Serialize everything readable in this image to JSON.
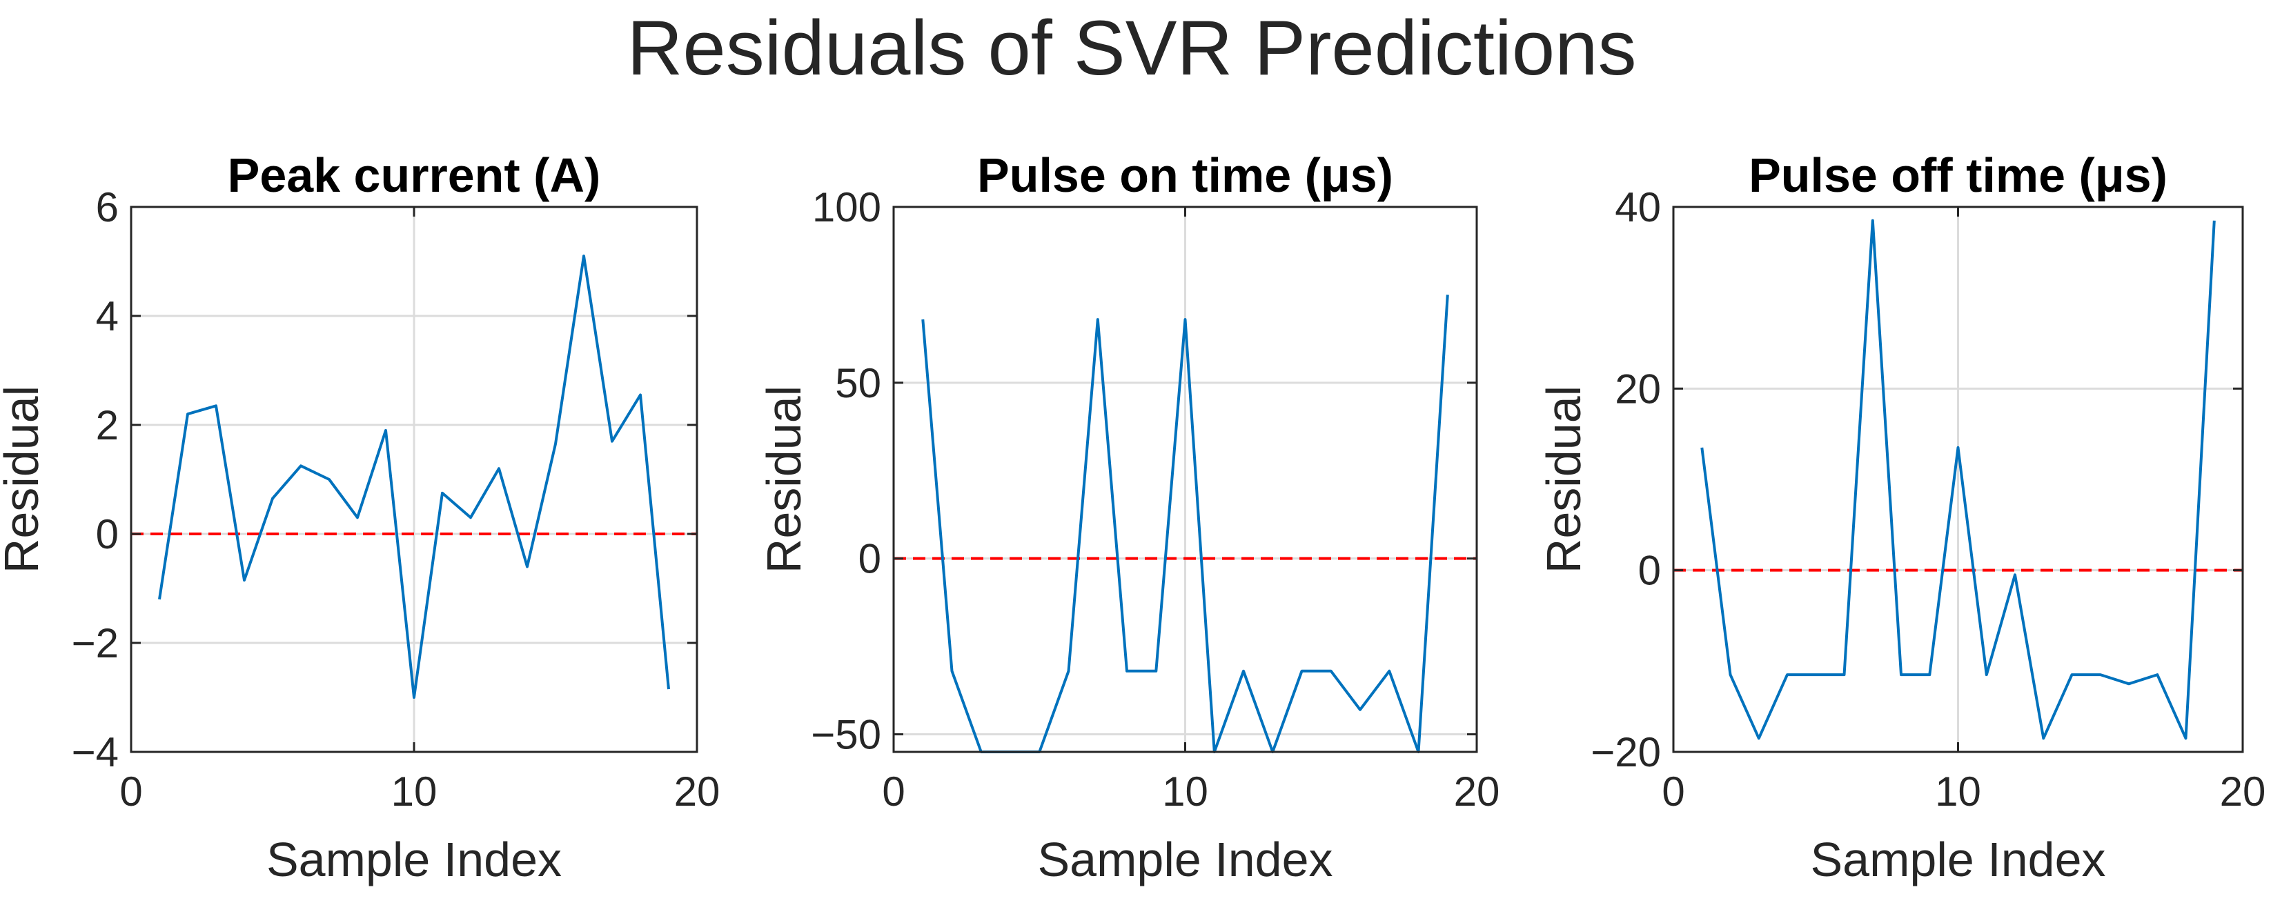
{
  "suptitle": "Residuals of SVR Predictions",
  "colors": {
    "series": "#0072BD",
    "zero_line": "#FF0000",
    "grid": "#DCDCDC",
    "axis": "#262626"
  },
  "chart_data": [
    {
      "type": "line",
      "title": "Peak current (A)",
      "xlabel": "Sample Index",
      "ylabel": "Residual",
      "xlim": [
        0,
        20
      ],
      "ylim": [
        -4,
        6
      ],
      "xticks": [
        0,
        10,
        20
      ],
      "yticks": [
        -4,
        -2,
        0,
        2,
        4,
        6
      ],
      "ytick_labels": [
        "−4",
        "−2",
        "0",
        "2",
        "4",
        "6"
      ],
      "grid": true,
      "reference_line": {
        "y": 0,
        "style": "dashed",
        "color": "red"
      },
      "x": [
        1,
        2,
        3,
        4,
        5,
        6,
        7,
        8,
        9,
        10,
        11,
        12,
        13,
        14,
        15,
        16,
        17,
        18,
        19
      ],
      "y": [
        -1.2,
        2.2,
        2.35,
        -0.85,
        0.65,
        1.25,
        1.0,
        0.3,
        1.9,
        -3.0,
        0.75,
        0.3,
        1.2,
        -0.6,
        1.65,
        5.1,
        1.7,
        2.55,
        -2.85
      ]
    },
    {
      "type": "line",
      "title": "Pulse on time (μs)",
      "xlabel": "Sample Index",
      "ylabel": "Residual",
      "xlim": [
        0,
        20
      ],
      "ylim": [
        -55,
        100
      ],
      "xticks": [
        0,
        10,
        20
      ],
      "yticks": [
        -50,
        0,
        50,
        100
      ],
      "ytick_labels": [
        "−50",
        "0",
        "50",
        "100"
      ],
      "grid": true,
      "reference_line": {
        "y": 0,
        "style": "dashed",
        "color": "red"
      },
      "x": [
        1,
        2,
        3,
        4,
        5,
        6,
        7,
        8,
        9,
        10,
        11,
        12,
        13,
        14,
        15,
        16,
        17,
        18,
        19
      ],
      "y": [
        68,
        -32,
        -58,
        -58,
        -58,
        -32,
        68,
        -32,
        -32,
        68,
        -58,
        -32,
        -58,
        -32,
        -32,
        -43,
        -32,
        -58,
        75
      ]
    },
    {
      "type": "line",
      "title": "Pulse off time (μs)",
      "xlabel": "Sample Index",
      "ylabel": "Residual",
      "xlim": [
        0,
        20
      ],
      "ylim": [
        -20,
        40
      ],
      "xticks": [
        0,
        10,
        20
      ],
      "yticks": [
        -20,
        0,
        20,
        40
      ],
      "ytick_labels": [
        "−20",
        "0",
        "20",
        "40"
      ],
      "grid": true,
      "reference_line": {
        "y": 0,
        "style": "dashed",
        "color": "red"
      },
      "x": [
        1,
        2,
        3,
        4,
        5,
        6,
        7,
        8,
        9,
        10,
        11,
        12,
        13,
        14,
        15,
        16,
        17,
        18,
        19
      ],
      "y": [
        13.5,
        -11.5,
        -18.5,
        -11.5,
        -11.5,
        -11.5,
        38.5,
        -11.5,
        -11.5,
        13.5,
        -11.5,
        -0.5,
        -18.5,
        -11.5,
        -11.5,
        -12.5,
        -11.5,
        -18.5,
        38.5
      ]
    }
  ]
}
